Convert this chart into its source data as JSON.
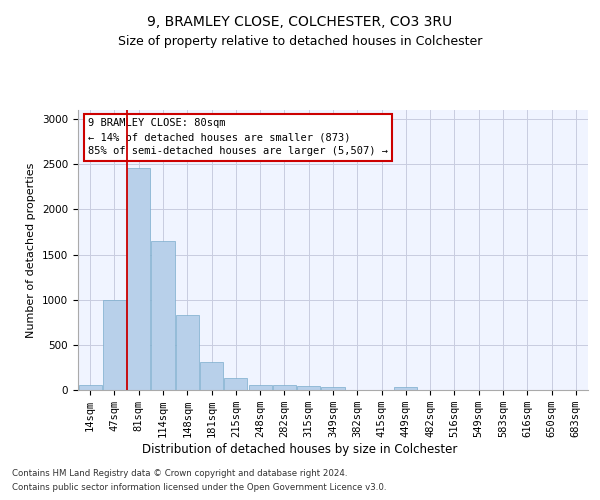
{
  "title": "9, BRAMLEY CLOSE, COLCHESTER, CO3 3RU",
  "subtitle": "Size of property relative to detached houses in Colchester",
  "xlabel": "Distribution of detached houses by size in Colchester",
  "ylabel": "Number of detached properties",
  "categories": [
    "14sqm",
    "47sqm",
    "81sqm",
    "114sqm",
    "148sqm",
    "181sqm",
    "215sqm",
    "248sqm",
    "282sqm",
    "315sqm",
    "349sqm",
    "382sqm",
    "415sqm",
    "449sqm",
    "482sqm",
    "516sqm",
    "549sqm",
    "583sqm",
    "616sqm",
    "650sqm",
    "683sqm"
  ],
  "values": [
    60,
    1000,
    2460,
    1650,
    830,
    310,
    130,
    55,
    50,
    45,
    30,
    0,
    0,
    30,
    0,
    0,
    0,
    0,
    0,
    0,
    0
  ],
  "bar_color": "#b8d0ea",
  "bar_edge_color": "#7aaccc",
  "vline_x_index": 2,
  "vline_color": "#cc0000",
  "annotation_box_text": "9 BRAMLEY CLOSE: 80sqm\n← 14% of detached houses are smaller (873)\n85% of semi-detached houses are larger (5,507) →",
  "annotation_box_color": "#cc0000",
  "ylim": [
    0,
    3100
  ],
  "yticks": [
    0,
    500,
    1000,
    1500,
    2000,
    2500,
    3000
  ],
  "background_color": "#f0f4ff",
  "grid_color": "#c8cce0",
  "title_fontsize": 10,
  "subtitle_fontsize": 9,
  "xlabel_fontsize": 8.5,
  "ylabel_fontsize": 8,
  "tick_fontsize": 7.5,
  "footer_line1": "Contains HM Land Registry data © Crown copyright and database right 2024.",
  "footer_line2": "Contains public sector information licensed under the Open Government Licence v3.0."
}
